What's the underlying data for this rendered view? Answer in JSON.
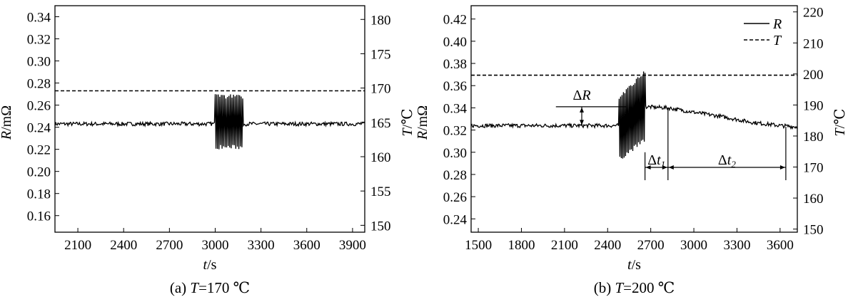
{
  "chart_data": [
    {
      "type": "line",
      "caption": {
        "prefix": "(a) ",
        "var": "T",
        "rest": "=170 ℃"
      },
      "xlabel": {
        "var": "t",
        "unit": "/s"
      },
      "ylabel_left": {
        "var": "R",
        "unit": "/mΩ"
      },
      "ylabel_right": {
        "var": "T",
        "unit": "/℃"
      },
      "x_ticks": [
        2100,
        2400,
        2700,
        3000,
        3300,
        3600,
        3900
      ],
      "xlim": [
        1950,
        3980
      ],
      "y_left_ticks": [
        "0.16",
        "0.18",
        "0.20",
        "0.22",
        "0.24",
        "0.26",
        "0.28",
        "0.30",
        "0.32",
        "0.34"
      ],
      "y_left_lim": [
        0.145,
        0.35
      ],
      "y_right_ticks": [
        "150",
        "155",
        "160",
        "165",
        "170",
        "175",
        "180"
      ],
      "y_right_lim": [
        149,
        182
      ],
      "series": [
        {
          "key": "R",
          "axis": "left",
          "style": "solid",
          "baseline": 0.243,
          "burst": {
            "x_start": 3000,
            "x_end": 3180,
            "y_min": 0.22,
            "y_max": 0.27
          }
        },
        {
          "key": "T",
          "axis": "right",
          "style": "dashed",
          "value": 169.6
        }
      ]
    },
    {
      "type": "line",
      "caption": {
        "prefix": "(b) ",
        "var": "T",
        "rest": "=200 ℃"
      },
      "xlabel": {
        "var": "t",
        "unit": "/s"
      },
      "ylabel_left": {
        "var": "R",
        "unit": "/mΩ"
      },
      "ylabel_right": {
        "var": "T",
        "unit": "/℃"
      },
      "x_ticks": [
        1500,
        1800,
        2100,
        2400,
        2700,
        3000,
        3300,
        3600
      ],
      "xlim": [
        1450,
        3720
      ],
      "y_left_ticks": [
        "0.24",
        "0.26",
        "0.28",
        "0.30",
        "0.32",
        "0.34",
        "0.36",
        "0.38",
        "0.40",
        "0.42"
      ],
      "y_left_lim": [
        0.228,
        0.432
      ],
      "y_right_ticks": [
        "150",
        "160",
        "170",
        "180",
        "190",
        "200",
        "210",
        "220"
      ],
      "y_right_lim": [
        149,
        222
      ],
      "legend": {
        "position": "top-right",
        "entries": [
          {
            "label": "R",
            "style": "solid"
          },
          {
            "label": "T",
            "style": "dashed"
          }
        ]
      },
      "series": [
        {
          "key": "R",
          "axis": "left",
          "style": "solid",
          "baseline": 0.324,
          "burst": {
            "x_start": 2480,
            "x_end": 2660,
            "y_min": 0.288,
            "y_max": 0.374
          },
          "recovery": [
            [
              2660,
              0.341
            ],
            [
              2820,
              0.34
            ],
            [
              3000,
              0.336
            ],
            [
              3200,
              0.332
            ],
            [
              3400,
              0.327
            ],
            [
              3600,
              0.324
            ],
            [
              3700,
              0.323
            ]
          ]
        },
        {
          "key": "T",
          "axis": "right",
          "style": "dashed",
          "value": 199.6
        }
      ],
      "annotations": {
        "dR": {
          "label_sym": "Δ",
          "label_var": "R",
          "x": 2220,
          "y_top": 0.341,
          "y_bottom": 0.324,
          "line_from_x": 2040
        },
        "dt1": {
          "label_sym": "Δ",
          "label_var": "t",
          "label_sub": "1",
          "x_from": 2660,
          "x_to": 2820
        },
        "dt2": {
          "label_sym": "Δ",
          "label_var": "t",
          "label_sub": "2",
          "x_from": 2820,
          "x_to": 3640
        }
      }
    }
  ]
}
